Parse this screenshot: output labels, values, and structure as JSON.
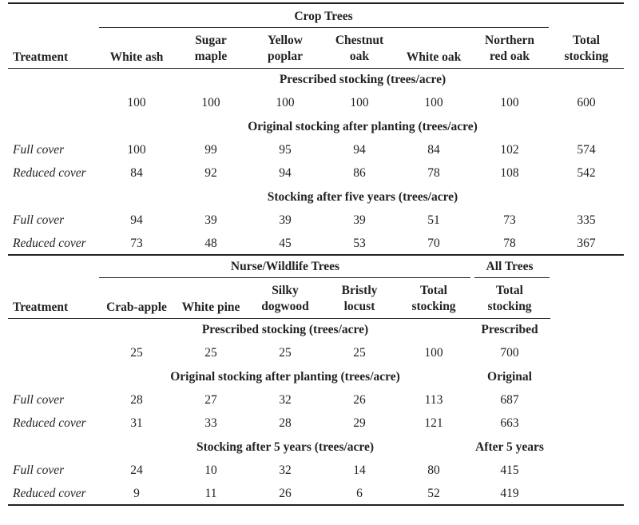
{
  "crop": {
    "group_header": "Crop Trees",
    "treatment_label": "Treatment",
    "columns": [
      "White ash",
      "Sugar\nmaple",
      "Yellow\npoplar",
      "Chestnut\noak",
      "White oak",
      "Northern\nred oak",
      "Total\nstocking"
    ],
    "sections": [
      {
        "title": "Prescribed stocking (trees/acre)",
        "rows": [
          {
            "label": "",
            "values": [
              "100",
              "100",
              "100",
              "100",
              "100",
              "100",
              "600"
            ]
          }
        ]
      },
      {
        "title": "Original stocking after planting (trees/acre)",
        "rows": [
          {
            "label": "Full cover",
            "values": [
              "100",
              "99",
              "95",
              "94",
              "84",
              "102",
              "574"
            ]
          },
          {
            "label": "Reduced cover",
            "values": [
              "84",
              "92",
              "94",
              "86",
              "78",
              "108",
              "542"
            ]
          }
        ]
      },
      {
        "title": "Stocking after five years (trees/acre)",
        "rows": [
          {
            "label": "Full cover",
            "values": [
              "94",
              "39",
              "39",
              "39",
              "51",
              "73",
              "335"
            ]
          },
          {
            "label": "Reduced cover",
            "values": [
              "73",
              "48",
              "45",
              "53",
              "70",
              "78",
              "367"
            ]
          }
        ]
      }
    ]
  },
  "nurse": {
    "group_header": "Nurse/Wildlife Trees",
    "all_header": "All Trees",
    "treatment_label": "Treatment",
    "columns": [
      "Crab-apple",
      "White pine",
      "Silky\ndogwood",
      "Bristly\nlocust",
      "Total\nstocking",
      "Total\nstocking"
    ],
    "sections": [
      {
        "title": "Prescribed stocking (trees/acre)",
        "right_title": "Prescribed",
        "rows": [
          {
            "label": "",
            "values": [
              "25",
              "25",
              "25",
              "25",
              "100",
              "700"
            ]
          }
        ]
      },
      {
        "title": "Original stocking after planting (trees/acre)",
        "right_title": "Original",
        "rows": [
          {
            "label": "Full cover",
            "values": [
              "28",
              "27",
              "32",
              "26",
              "113",
              "687"
            ]
          },
          {
            "label": "Reduced cover",
            "values": [
              "31",
              "33",
              "28",
              "29",
              "121",
              "663"
            ]
          }
        ]
      },
      {
        "title": "Stocking after 5 years (trees/acre)",
        "right_title": "After 5 years",
        "rows": [
          {
            "label": "Full cover",
            "values": [
              "24",
              "10",
              "32",
              "14",
              "80",
              "415"
            ]
          },
          {
            "label": "Reduced cover",
            "values": [
              "9",
              "11",
              "26",
              "6",
              "52",
              "419"
            ]
          }
        ]
      }
    ]
  }
}
